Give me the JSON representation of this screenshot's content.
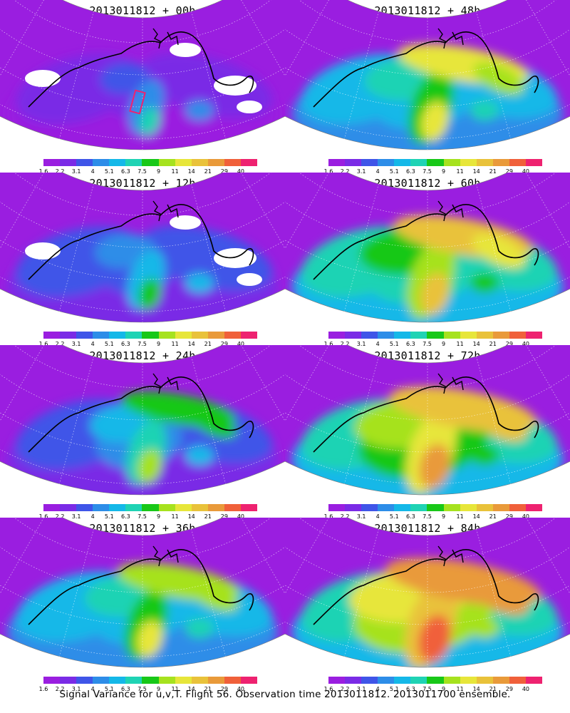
{
  "footer": "Signal Variance for u,v,T. Flight 56. Observation time 2013011812. 2013011700 ensemble.",
  "colorbar": {
    "labels": [
      "1.6",
      "2.2",
      "3.1",
      "4",
      "5.1",
      "6.3",
      "7.5",
      "9",
      "11",
      "14",
      "21",
      "29",
      "40"
    ],
    "colors": [
      "#9a1ee0",
      "#7a2be6",
      "#3f55e8",
      "#2d8de8",
      "#14b8e8",
      "#1fd3b4",
      "#18c818",
      "#a6e21e",
      "#e7e63a",
      "#e9c23a",
      "#e99a3a",
      "#f0603a",
      "#ee2270"
    ]
  },
  "panels": [
    {
      "title": "2013011812 + 00h",
      "lead_hours": 0
    },
    {
      "title": "2013011812 + 48h",
      "lead_hours": 48
    },
    {
      "title": "2013011812 + 12h",
      "lead_hours": 12
    },
    {
      "title": "2013011812 + 60h",
      "lead_hours": 60
    },
    {
      "title": "2013011812 + 24h",
      "lead_hours": 24
    },
    {
      "title": "2013011812 + 72h",
      "lead_hours": 72
    },
    {
      "title": "2013011812 + 36h",
      "lead_hours": 36
    },
    {
      "title": "2013011812 + 84h",
      "lead_hours": 84
    }
  ]
}
